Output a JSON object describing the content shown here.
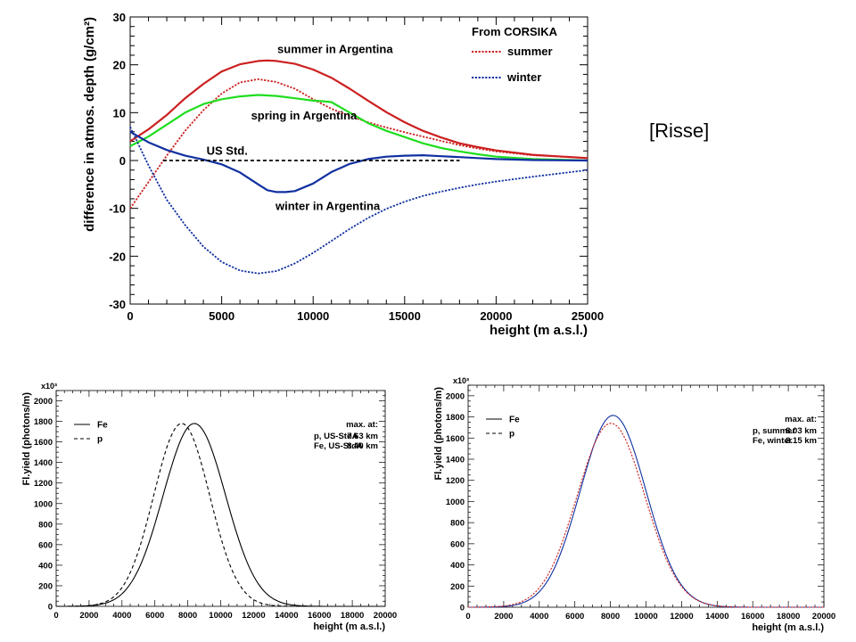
{
  "source_tag": "[Risse]",
  "chart_data": [
    {
      "type": "line",
      "xlabel": "height (m a.s.l.)",
      "ylabel": "difference in atmos. depth (g/cm²)",
      "xlim": [
        0,
        25000
      ],
      "ylim": [
        -30,
        30
      ],
      "x_ticks": [
        0,
        5000,
        10000,
        15000,
        20000,
        25000
      ],
      "y_ticks": [
        -30,
        -20,
        -10,
        0,
        10,
        20,
        30
      ],
      "legend": {
        "title": "From CORSIKA",
        "position": "top-right",
        "entries": [
          {
            "label": "summer",
            "color": "#cc2020",
            "style": "dotted"
          },
          {
            "label": "winter",
            "color": "#1030a0",
            "style": "dotted"
          }
        ]
      },
      "annotations": [
        {
          "text": "summer in Argentina",
          "x": 11200,
          "y": 22.5
        },
        {
          "text": "spring in Argentina",
          "x": 9500,
          "y": 8.6
        },
        {
          "text": "US Std.",
          "x": 5300,
          "y": 1.2
        },
        {
          "text": "winter in Argentina",
          "x": 10800,
          "y": -10.3
        }
      ],
      "series": [
        {
          "color": "#cc2020",
          "style": "solid",
          "x": [
            0,
            1000,
            2000,
            3000,
            4000,
            5000,
            6000,
            7000,
            7500,
            8000,
            9000,
            10000,
            11000,
            12000,
            13000,
            14000,
            15000,
            16000,
            17000,
            18000,
            19000,
            20000,
            22000,
            25000
          ],
          "y": [
            4,
            6.5,
            9.5,
            13,
            16,
            18.6,
            20.1,
            20.8,
            20.9,
            20.8,
            20.2,
            19,
            17.3,
            15,
            12.5,
            10.1,
            8,
            6.2,
            4.8,
            3.6,
            2.8,
            2.1,
            1.2,
            0.5
          ]
        },
        {
          "color": "#cc2020",
          "style": "dotted",
          "x": [
            0,
            1000,
            2000,
            3000,
            4000,
            5000,
            6000,
            7000,
            8000,
            9000,
            10000,
            11000,
            12000,
            13000,
            14000,
            15000,
            16000,
            17000,
            18000,
            19000,
            20000,
            22000,
            25000
          ],
          "y": [
            -10,
            -4.5,
            1,
            6.2,
            10.5,
            14,
            16.3,
            17,
            16.4,
            15,
            12.8,
            10.8,
            9.3,
            8,
            6.9,
            5.9,
            5,
            4.1,
            3.2,
            2.5,
            1.9,
            1.1,
            0.5
          ]
        },
        {
          "color": "#20dd20",
          "style": "solid",
          "x": [
            0,
            1000,
            2000,
            3000,
            4000,
            5000,
            6000,
            7000,
            8000,
            9000,
            10000,
            10500,
            11000,
            12000,
            13000,
            14000,
            15000,
            16000,
            17000,
            18000,
            19000,
            20000,
            22000,
            25000
          ],
          "y": [
            3,
            5,
            7.5,
            10,
            11.8,
            12.8,
            13.4,
            13.7,
            13.5,
            13,
            12.5,
            12.4,
            12.2,
            10,
            7.8,
            6.2,
            4.9,
            3.6,
            2.6,
            1.9,
            1.3,
            0.8,
            0.3,
            0
          ]
        },
        {
          "color": "#1030a0",
          "style": "solid",
          "x": [
            0,
            1000,
            2000,
            3000,
            4000,
            5000,
            6000,
            7000,
            7500,
            8000,
            8500,
            9000,
            10000,
            11000,
            12000,
            13000,
            14000,
            15000,
            16000,
            17000,
            18000,
            19000,
            20000,
            22000,
            25000
          ],
          "y": [
            6,
            3.8,
            2.2,
            1,
            0.2,
            -0.8,
            -2.5,
            -5,
            -6.2,
            -6.6,
            -6.6,
            -6.4,
            -4.8,
            -2.4,
            -0.7,
            0.3,
            0.8,
            1,
            1.1,
            0.9,
            0.7,
            0.5,
            0.3,
            0.1,
            0
          ]
        },
        {
          "color": "#1030a0",
          "style": "dotted",
          "x": [
            0,
            1000,
            2000,
            3000,
            4000,
            5000,
            6000,
            7000,
            8000,
            9000,
            10000,
            11000,
            12000,
            13000,
            14000,
            15000,
            16000,
            17000,
            18000,
            19000,
            20000,
            22000,
            25000
          ],
          "y": [
            7,
            -1,
            -8.2,
            -13.5,
            -18,
            -21.2,
            -23,
            -23.6,
            -23.1,
            -21.5,
            -19.3,
            -16.8,
            -14.3,
            -12,
            -10.1,
            -8.6,
            -7.4,
            -6.5,
            -5.7,
            -5,
            -4.4,
            -3.4,
            -2
          ]
        },
        {
          "color": "#000000",
          "style": "dashed",
          "x": [
            1800,
            18000
          ],
          "y": [
            0,
            0
          ]
        }
      ]
    },
    {
      "type": "line",
      "xlabel": "height (m a.s.l.)",
      "ylabel": "Fl.yield (photons/m)",
      "y_multiplier": "x10³",
      "xlim": [
        0,
        20000
      ],
      "ylim": [
        0,
        2100
      ],
      "x_ticks": [
        0,
        2000,
        4000,
        6000,
        8000,
        10000,
        12000,
        14000,
        16000,
        18000,
        20000
      ],
      "y_ticks": [
        0,
        200,
        400,
        600,
        800,
        1000,
        1200,
        1400,
        1600,
        1800,
        2000
      ],
      "legend": [
        {
          "label": "Fe",
          "style": "solid",
          "color": "#000000"
        },
        {
          "label": "p",
          "style": "dashed",
          "color": "#000000"
        }
      ],
      "max_info": {
        "title": "max. at:",
        "rows": [
          {
            "label": "p, US-StdA",
            "value": "7.63 km"
          },
          {
            "label": "Fe, US-StdA",
            "value": "8.40 km"
          }
        ]
      },
      "series": [
        {
          "name": "Fe",
          "color": "#000000",
          "style": "solid",
          "peak_x": 8400,
          "peak_y": 1780
        },
        {
          "name": "p",
          "color": "#000000",
          "style": "dashed",
          "peak_x": 7630,
          "peak_y": 1780
        }
      ]
    },
    {
      "type": "line",
      "xlabel": "height (m a.s.l.)",
      "ylabel": "Fl.yield (photons/m)",
      "y_multiplier": "x10³",
      "xlim": [
        0,
        20000
      ],
      "ylim": [
        0,
        2100
      ],
      "x_ticks": [
        0,
        2000,
        4000,
        6000,
        8000,
        10000,
        12000,
        14000,
        16000,
        18000,
        20000
      ],
      "y_ticks": [
        0,
        200,
        400,
        600,
        800,
        1000,
        1200,
        1400,
        1600,
        1800,
        2000
      ],
      "legend": [
        {
          "label": "Fe",
          "style": "solid",
          "color": "#000000"
        },
        {
          "label": "p",
          "style": "dashed",
          "color": "#000000"
        }
      ],
      "max_info": {
        "title": "max. at:",
        "rows": [
          {
            "label": "p, summer",
            "value": "8.03 km"
          },
          {
            "label": "Fe, winter",
            "value": "8.15 km"
          }
        ]
      },
      "series": [
        {
          "name": "Fe",
          "color": "#1030a0",
          "style": "solid",
          "peak_x": 8150,
          "peak_y": 1815
        },
        {
          "name": "p",
          "color": "#cc2020",
          "style": "dotted",
          "peak_x": 8030,
          "peak_y": 1740
        }
      ]
    }
  ]
}
